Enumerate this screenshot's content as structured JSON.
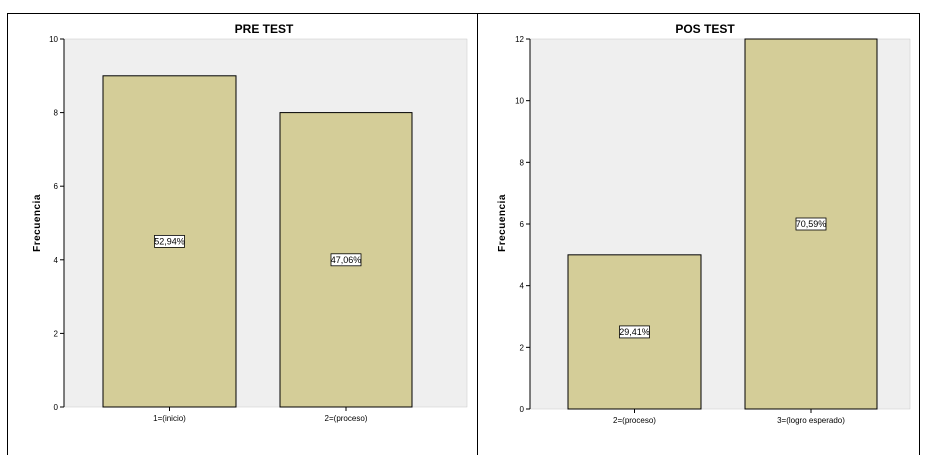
{
  "chart_data": [
    {
      "type": "bar",
      "title": "PRE TEST",
      "ylabel": "Frecuencia",
      "xlabel": "",
      "categories": [
        "1=(inicio)",
        "2=(proceso)"
      ],
      "values": [
        9,
        8
      ],
      "data_labels": [
        "52,94%",
        "47,06%"
      ],
      "ylim": [
        0,
        10
      ],
      "yticks": [
        0,
        2,
        4,
        6,
        8,
        10
      ],
      "bar_color": "#d4cd98",
      "plot_bg": "#efefef",
      "grid": false
    },
    {
      "type": "bar",
      "title": "POS TEST",
      "ylabel": "Frecuencia",
      "xlabel": "",
      "categories": [
        "2=(proceso)",
        "3=(logro esperado)"
      ],
      "values": [
        5,
        12
      ],
      "data_labels": [
        "29,41%",
        "70,59%"
      ],
      "ylim": [
        0,
        12
      ],
      "yticks": [
        0,
        2,
        4,
        6,
        8,
        10,
        12
      ],
      "bar_color": "#d4cd98",
      "plot_bg": "#efefef",
      "grid": false
    }
  ]
}
